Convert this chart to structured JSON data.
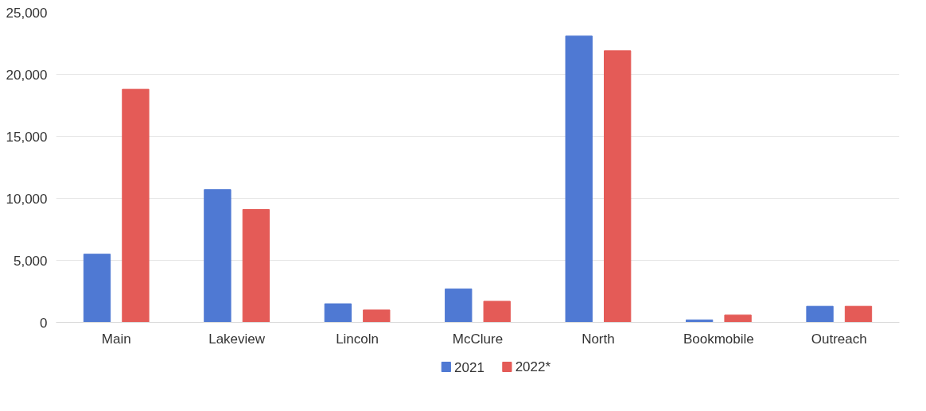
{
  "chart_data": {
    "type": "bar",
    "categories": [
      "Main",
      "Lakeview",
      "Lincoln",
      "McClure",
      "North",
      "Bookmobile",
      "Outreach"
    ],
    "series": [
      {
        "name": "2021",
        "color": "#4f79d3",
        "values": [
          5500,
          10700,
          1500,
          2700,
          23100,
          200,
          1300
        ]
      },
      {
        "name": "2022*",
        "color": "#e45b57",
        "values": [
          18800,
          9100,
          1000,
          1700,
          21900,
          600,
          1300
        ]
      }
    ],
    "ylim": [
      0,
      25000
    ],
    "yticks": [
      {
        "value": 0,
        "label": "0"
      },
      {
        "value": 5000,
        "label": "5,000"
      },
      {
        "value": 10000,
        "label": "10,000"
      },
      {
        "value": 15000,
        "label": "15,000"
      },
      {
        "value": 20000,
        "label": "20,000"
      },
      {
        "value": 25000,
        "label": "25,000"
      }
    ],
    "grid": "y",
    "legend": "bottom"
  }
}
